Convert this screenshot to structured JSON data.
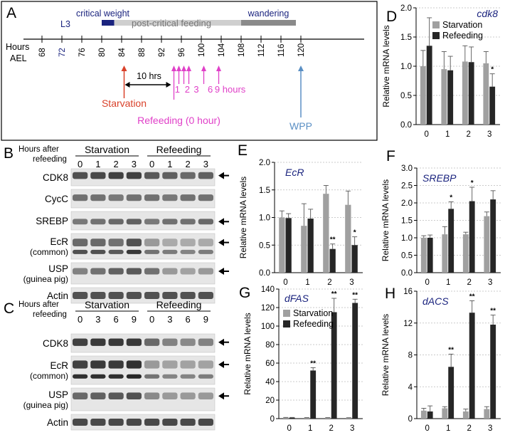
{
  "panels": {
    "A": {
      "label": "A",
      "axis_title": [
        "Hours",
        "AEL"
      ],
      "ticks": [
        "68",
        "72",
        "76",
        "80",
        "84",
        "88",
        "92",
        "96",
        "100",
        "104",
        "108",
        "112",
        "116",
        "120"
      ],
      "highlight_tick": "72",
      "stage_label": "L3",
      "phases": [
        "critical weight",
        "post-critical feeding",
        "wandering"
      ],
      "interval_label": "10 hrs",
      "starvation_label": "Starvation",
      "refeeding_label": "Refeeding (0 hour)",
      "refeed_marks": [
        "1",
        "2",
        "3",
        "6",
        "9 hours"
      ],
      "wpp_label": "WPP",
      "colors": {
        "starvation": "#d9412a",
        "refeeding": "#e040c8",
        "wpp": "#5a8fc4",
        "stage": "#1a237e"
      }
    },
    "B": {
      "label": "B",
      "hours_label": [
        "Hours after",
        "refeeding"
      ],
      "groups": [
        "Starvation",
        "Refeeding"
      ],
      "lanes": [
        "0",
        "1",
        "2",
        "3",
        "0",
        "1",
        "2",
        "3"
      ],
      "rows": [
        {
          "name": "CDK8",
          "arrow": true
        },
        {
          "name": "CycC",
          "arrow": false
        },
        {
          "name": "SREBP",
          "arrow": true
        },
        {
          "name": "EcR",
          "sub": "(common)",
          "arrow": true
        },
        {
          "name": "USP",
          "sub": "(guinea pig)",
          "arrow": true
        },
        {
          "name": "Actin",
          "arrow": false
        }
      ]
    },
    "C": {
      "label": "C",
      "hours_label": [
        "Hours after",
        "refeeding"
      ],
      "groups": [
        "Starvation",
        "Refeeding"
      ],
      "lanes": [
        "0",
        "3",
        "6",
        "9",
        "0",
        "3",
        "6",
        "9"
      ],
      "rows": [
        {
          "name": "CDK8",
          "arrow": true
        },
        {
          "name": "EcR",
          "sub": "(common)",
          "arrow": true
        },
        {
          "name": "USP",
          "sub": "(guinea pig)",
          "arrow": true
        },
        {
          "name": "Actin",
          "arrow": false
        }
      ]
    }
  },
  "chart_data": [
    {
      "panel": "D",
      "type": "bar",
      "title": "cdk8",
      "categories": [
        "0",
        "1",
        "2",
        "3"
      ],
      "ylabel": "Relative mRNA levels",
      "ylim": [
        0,
        2.0
      ],
      "yticks": [
        "0.0",
        "0.5",
        "1.0",
        "1.5",
        "2.0"
      ],
      "legend": [
        "Starvation",
        "Refeeding"
      ],
      "legend_position": "top",
      "series": [
        {
          "name": "Starvation",
          "values": [
            1.0,
            0.95,
            1.08,
            1.05
          ],
          "errors": [
            0.27,
            0.3,
            0.27,
            0.2
          ]
        },
        {
          "name": "Refeeding",
          "values": [
            1.35,
            0.93,
            1.07,
            0.65
          ],
          "errors": [
            0.48,
            0.24,
            0.26,
            0.22
          ]
        }
      ],
      "significance": [
        {
          "index": 3,
          "series": 1,
          "mark": "*"
        }
      ]
    },
    {
      "panel": "E",
      "type": "bar",
      "title": "EcR",
      "categories": [
        "0",
        "1",
        "2",
        "3"
      ],
      "ylabel": "Relative mRNA levels",
      "ylim": [
        0,
        2.0
      ],
      "yticks": [
        "0.0",
        "0.5",
        "1.0",
        "1.5",
        "2.0"
      ],
      "series": [
        {
          "name": "Starvation",
          "values": [
            1.0,
            0.85,
            1.43,
            1.23
          ],
          "errors": [
            0.12,
            0.4,
            0.15,
            0.25
          ]
        },
        {
          "name": "Refeeding",
          "values": [
            0.99,
            0.98,
            0.43,
            0.5
          ],
          "errors": [
            0.08,
            0.17,
            0.09,
            0.15
          ]
        }
      ],
      "significance": [
        {
          "index": 2,
          "series": 1,
          "mark": "**"
        },
        {
          "index": 3,
          "series": 1,
          "mark": "*"
        }
      ]
    },
    {
      "panel": "F",
      "type": "bar",
      "title": "SREBP",
      "categories": [
        "0",
        "1",
        "2",
        "3"
      ],
      "ylabel": "Relative mRNA levels",
      "ylim": [
        0,
        3.0
      ],
      "yticks": [
        "0.0",
        "0.5",
        "1.0",
        "1.5",
        "2.0",
        "2.5",
        "3.0"
      ],
      "series": [
        {
          "name": "Starvation",
          "values": [
            1.0,
            1.1,
            1.1,
            1.62
          ],
          "errors": [
            0.06,
            0.22,
            0.06,
            0.12
          ]
        },
        {
          "name": "Refeeding",
          "values": [
            1.0,
            1.83,
            2.05,
            2.1
          ],
          "errors": [
            0.08,
            0.2,
            0.4,
            0.25
          ]
        }
      ],
      "significance": [
        {
          "index": 1,
          "series": 1,
          "mark": "*"
        },
        {
          "index": 2,
          "series": 1,
          "mark": "*"
        }
      ]
    },
    {
      "panel": "G",
      "type": "bar",
      "title": "dFAS",
      "categories": [
        "0",
        "1",
        "2",
        "3"
      ],
      "ylabel": "Relative mRNA levels",
      "ylim": [
        0,
        140
      ],
      "yticks": [
        "0",
        "20",
        "40",
        "60",
        "80",
        "100",
        "120",
        "140"
      ],
      "legend": [
        "Starvation",
        "Refeeding"
      ],
      "legend_position": "top-left",
      "series": [
        {
          "name": "Starvation",
          "values": [
            1.0,
            0.8,
            0.8,
            0.7
          ],
          "errors": [
            0.3,
            0.3,
            0.3,
            0.3
          ]
        },
        {
          "name": "Refeeding",
          "values": [
            1.0,
            52,
            115,
            125
          ],
          "errors": [
            0.3,
            3,
            15,
            4
          ]
        }
      ],
      "significance": [
        {
          "index": 1,
          "series": 1,
          "mark": "**"
        },
        {
          "index": 2,
          "series": 1,
          "mark": "**"
        },
        {
          "index": 3,
          "series": 1,
          "mark": "**"
        }
      ]
    },
    {
      "panel": "H",
      "type": "bar",
      "title": "dACS",
      "categories": [
        "0",
        "1",
        "2",
        "3"
      ],
      "ylabel": "Relative mRNA levels",
      "ylim": [
        0,
        16
      ],
      "yticks": [
        "0",
        "4",
        "8",
        "12",
        "16"
      ],
      "series": [
        {
          "name": "Starvation",
          "values": [
            1.0,
            1.3,
            0.9,
            1.2
          ],
          "errors": [
            0.3,
            0.2,
            0.3,
            0.3
          ]
        },
        {
          "name": "Refeeding",
          "values": [
            0.9,
            6.5,
            13.3,
            11.8
          ],
          "errors": [
            0.7,
            1.6,
            1.5,
            1.2
          ]
        }
      ],
      "significance": [
        {
          "index": 1,
          "series": 1,
          "mark": "**"
        },
        {
          "index": 2,
          "series": 1,
          "mark": "**"
        },
        {
          "index": 3,
          "series": 1,
          "mark": "**"
        }
      ]
    }
  ]
}
